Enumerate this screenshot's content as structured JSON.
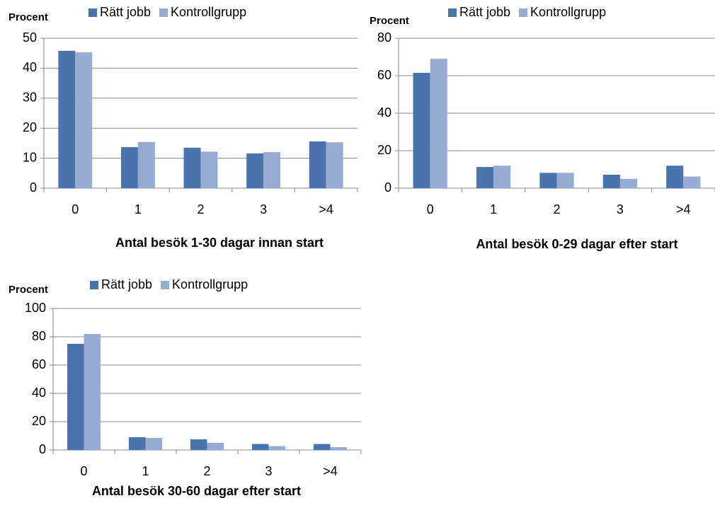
{
  "chart_data": [
    {
      "type": "bar",
      "ylabel": "Procent",
      "xlabel": "Antal besök 1-30 dagar innan start",
      "categories": [
        "0",
        "1",
        "2",
        "3",
        ">4"
      ],
      "series": [
        {
          "name": "Rätt jobb",
          "color": "#4a74ad",
          "values": [
            45.8,
            13.7,
            13.5,
            11.6,
            15.6
          ]
        },
        {
          "name": "Kontrollgrupp",
          "color": "#98abd4",
          "values": [
            45.3,
            15.4,
            12.2,
            12.0,
            15.3
          ]
        }
      ],
      "ylim": [
        0,
        50
      ],
      "yticks": [
        0,
        10,
        20,
        30,
        40,
        50
      ],
      "grid": true
    },
    {
      "type": "bar",
      "ylabel": "Procent",
      "xlabel": "Antal besök 0-29 dagar efter start",
      "categories": [
        "0",
        "1",
        "2",
        "3",
        ">4"
      ],
      "series": [
        {
          "name": "Rätt jobb",
          "color": "#4a74ad",
          "values": [
            61.5,
            11.3,
            8.2,
            7.2,
            12.0
          ]
        },
        {
          "name": "Kontrollgrupp",
          "color": "#98abd4",
          "values": [
            69,
            12,
            8.2,
            5,
            6.2
          ]
        }
      ],
      "ylim": [
        0,
        80
      ],
      "yticks": [
        0,
        20,
        40,
        60,
        80
      ],
      "grid": true
    },
    {
      "type": "bar",
      "ylabel": "Procent",
      "xlabel": "Antal besök 30-60 dagar efter start",
      "categories": [
        "0",
        "1",
        "2",
        "3",
        ">4"
      ],
      "series": [
        {
          "name": "Rätt jobb",
          "color": "#4a74ad",
          "values": [
            75,
            9,
            7.5,
            4.2,
            4.2
          ]
        },
        {
          "name": "Kontrollgrupp",
          "color": "#98abd4",
          "values": [
            82,
            8.5,
            5,
            2.7,
            2
          ]
        }
      ],
      "ylim": [
        0,
        100
      ],
      "yticks": [
        0,
        20,
        40,
        60,
        80,
        100
      ],
      "grid": true
    }
  ]
}
